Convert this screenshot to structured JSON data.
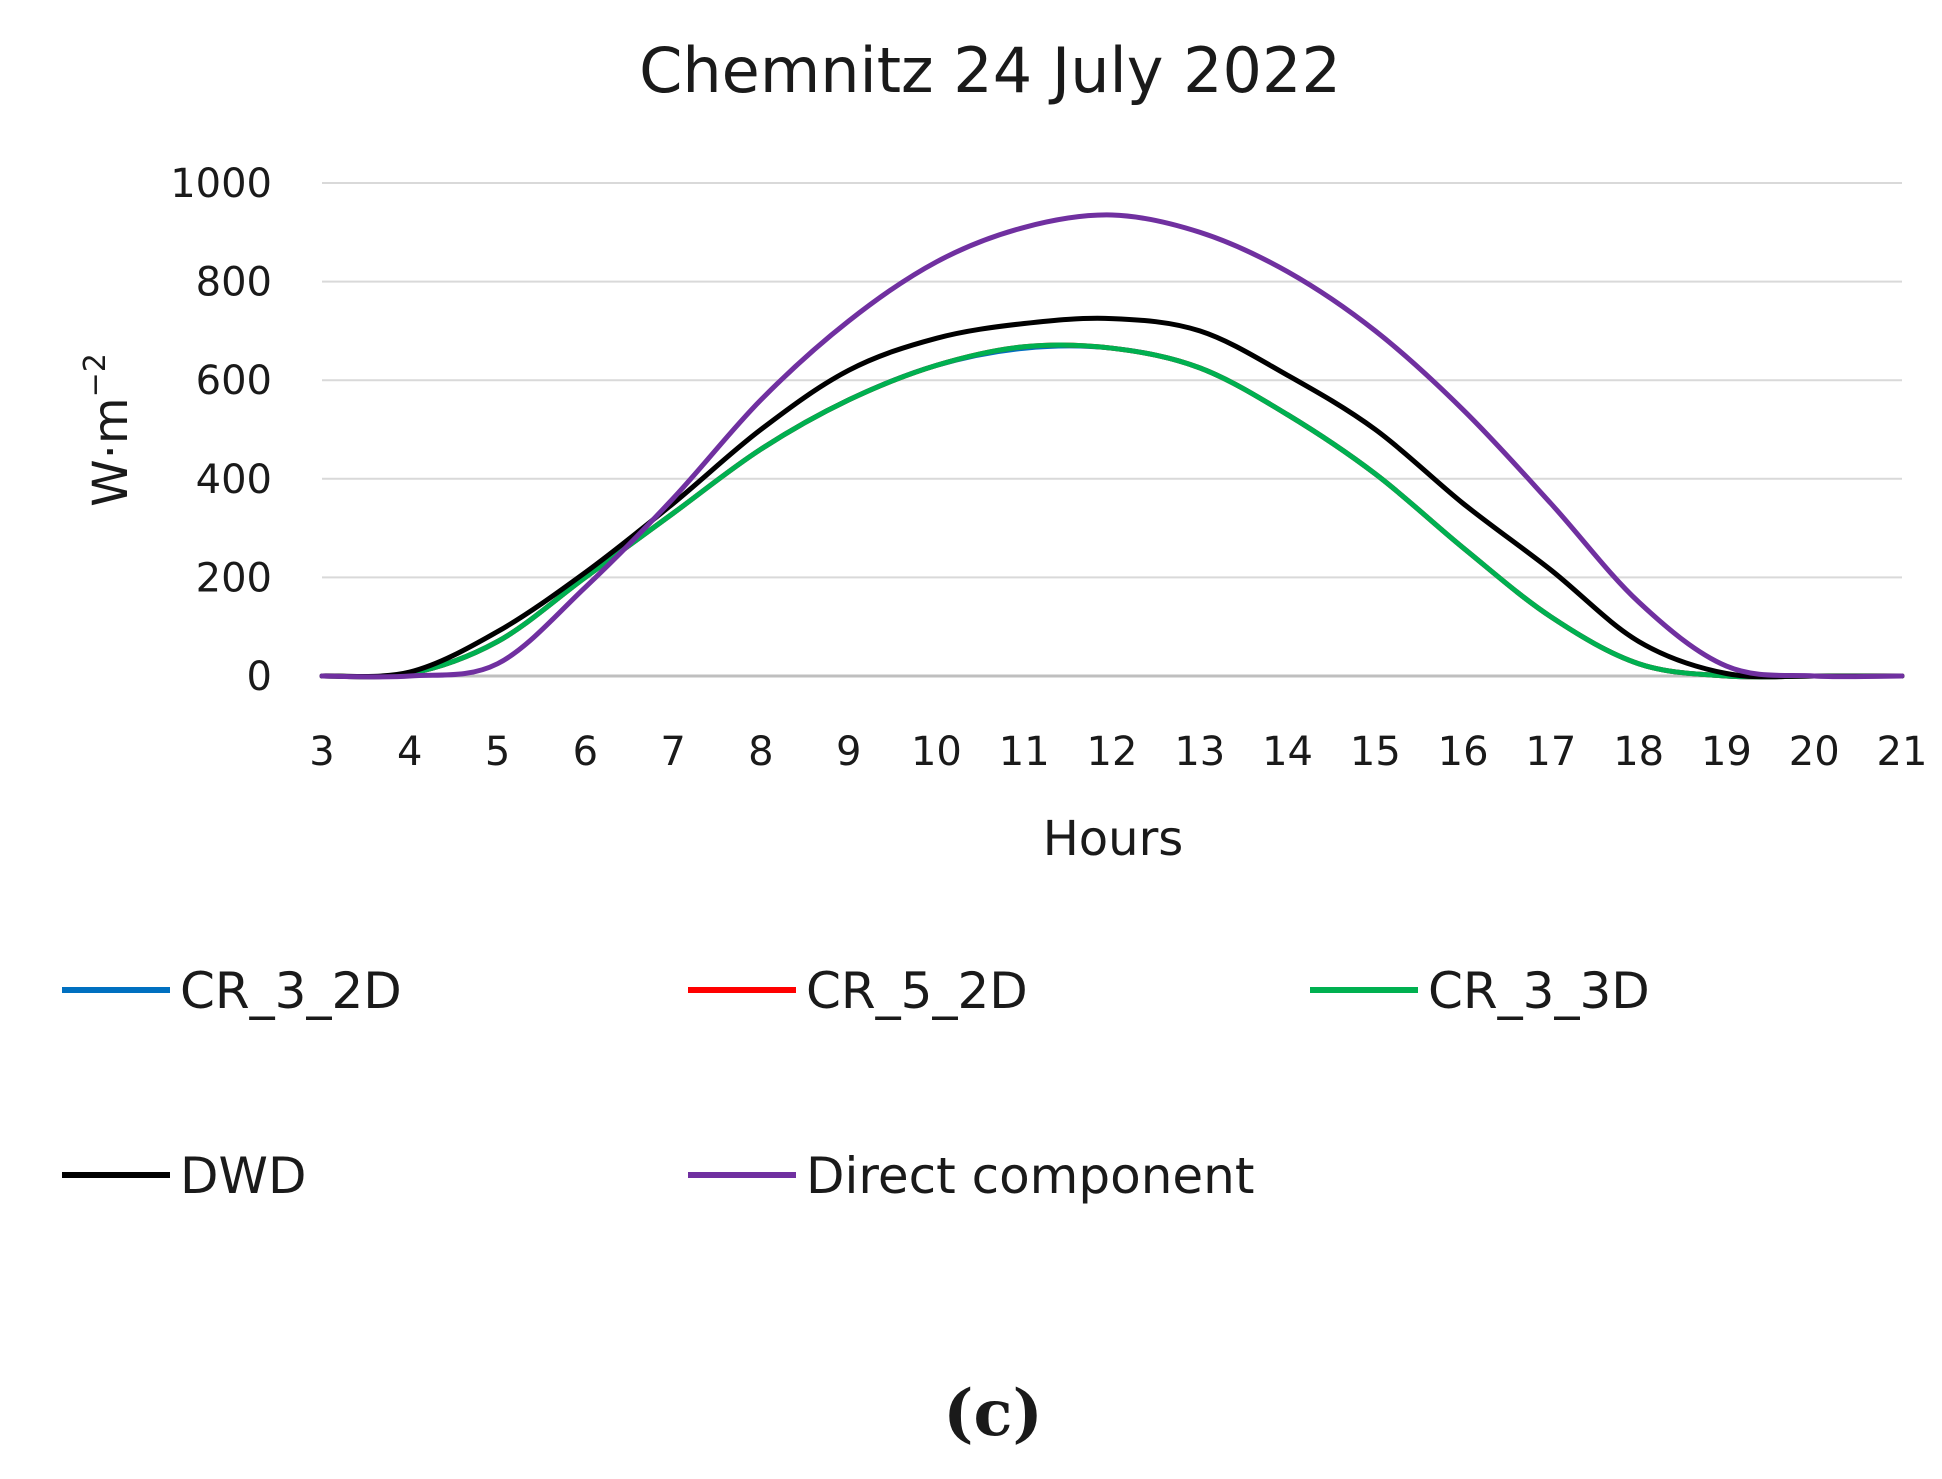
{
  "chart_data": {
    "type": "line",
    "title": "Chemnitz 24 July 2022",
    "xlabel": "Hours",
    "ylabel": "W·m",
    "ylabel_exponent": "−2",
    "panel_label": "(c)",
    "xlim": [
      3,
      21
    ],
    "ylim": [
      0,
      1000
    ],
    "x_ticks": [
      3,
      4,
      5,
      6,
      7,
      8,
      9,
      10,
      11,
      12,
      13,
      14,
      15,
      16,
      17,
      18,
      19,
      20,
      21
    ],
    "y_ticks": [
      0,
      200,
      400,
      600,
      800,
      1000
    ],
    "grid": true,
    "legend_position": "bottom",
    "x": [
      3,
      4,
      5,
      6,
      7,
      8,
      9,
      10,
      11,
      12,
      13,
      14,
      15,
      16,
      17,
      18,
      19,
      20,
      21
    ],
    "series": [
      {
        "name": "CR_3_2D",
        "color": "#0070c0",
        "values": [
          0,
          5,
          70,
          200,
          330,
          460,
          560,
          630,
          665,
          665,
          625,
          530,
          410,
          260,
          120,
          25,
          0,
          0,
          0
        ]
      },
      {
        "name": "CR_5_2D",
        "color": "#ff0000",
        "values": [
          0,
          5,
          70,
          200,
          330,
          460,
          560,
          630,
          668,
          665,
          625,
          530,
          410,
          260,
          120,
          25,
          0,
          0,
          0
        ]
      },
      {
        "name": "CR_3_3D",
        "color": "#00b050",
        "values": [
          0,
          5,
          70,
          200,
          330,
          460,
          560,
          630,
          668,
          665,
          625,
          530,
          410,
          260,
          120,
          25,
          0,
          0,
          0
        ]
      },
      {
        "name": "DWD",
        "color": "#000000",
        "values": [
          0,
          8,
          90,
          210,
          350,
          500,
          620,
          685,
          715,
          725,
          700,
          610,
          500,
          350,
          215,
          70,
          5,
          0,
          0
        ]
      },
      {
        "name": "Direct component",
        "color": "#7030a0",
        "values": [
          0,
          0,
          25,
          180,
          360,
          560,
          720,
          840,
          910,
          935,
          900,
          820,
          700,
          540,
          350,
          150,
          20,
          0,
          0
        ]
      }
    ]
  }
}
